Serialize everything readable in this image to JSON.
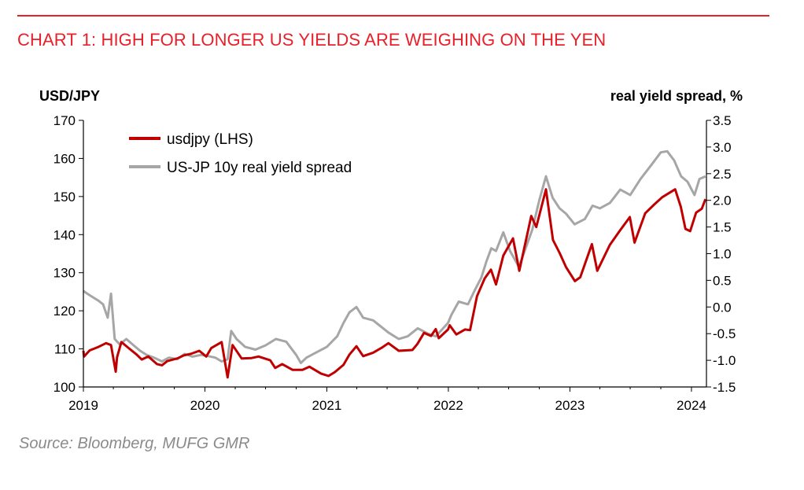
{
  "header": {
    "title": "CHART 1: HIGH FOR LONGER US YIELDS ARE WEIGHING ON THE YEN",
    "accent_color": "#e8202a"
  },
  "footer": {
    "source": "Source: Bloomberg, MUFG GMR"
  },
  "chart_data": {
    "type": "line",
    "left_axis_title": "USD/JPY",
    "right_axis_title": "real yield spread, %",
    "left_ylim": [
      100,
      170
    ],
    "right_ylim": [
      -1.5,
      3.5
    ],
    "xlim": [
      "2019-01-01",
      "2024-02-15"
    ],
    "x_tick_labels": [
      "2019",
      "2020",
      "2021",
      "2022",
      "2023",
      "2024"
    ],
    "left_tick_labels": [
      "100",
      "110",
      "120",
      "130",
      "140",
      "150",
      "160",
      "170"
    ],
    "right_tick_labels": [
      "-1.5",
      "-1.0",
      "-0.5",
      "0.0",
      "0.5",
      "1.0",
      "1.5",
      "2.0",
      "2.5",
      "3.0",
      "3.5"
    ],
    "grid": false,
    "legend_position": "top-left",
    "series": [
      {
        "name": "usdjpy (LHS)",
        "axis": "left",
        "color": "#c00000",
        "points": [
          [
            "2019-01-01",
            109.5
          ],
          [
            "2019-01-03",
            108.0
          ],
          [
            "2019-01-20",
            109.6
          ],
          [
            "2019-02-15",
            110.5
          ],
          [
            "2019-03-10",
            111.5
          ],
          [
            "2019-03-25",
            111.0
          ],
          [
            "2019-04-08",
            104.0
          ],
          [
            "2019-04-12",
            107.8
          ],
          [
            "2019-04-25",
            111.8
          ],
          [
            "2019-05-20",
            110.0
          ],
          [
            "2019-06-10",
            108.5
          ],
          [
            "2019-06-25",
            107.2
          ],
          [
            "2019-07-15",
            108.0
          ],
          [
            "2019-08-10",
            106.0
          ],
          [
            "2019-08-25",
            105.7
          ],
          [
            "2019-09-10",
            106.8
          ],
          [
            "2019-10-10",
            107.5
          ],
          [
            "2019-10-30",
            108.3
          ],
          [
            "2019-11-20",
            108.7
          ],
          [
            "2019-12-15",
            109.5
          ],
          [
            "2020-01-05",
            108.0
          ],
          [
            "2020-01-20",
            110.2
          ],
          [
            "2020-02-20",
            111.8
          ],
          [
            "2020-03-09",
            102.5
          ],
          [
            "2020-03-24",
            111.0
          ],
          [
            "2020-04-20",
            107.5
          ],
          [
            "2020-05-20",
            107.6
          ],
          [
            "2020-06-10",
            108.0
          ],
          [
            "2020-07-15",
            107.0
          ],
          [
            "2020-07-30",
            105.0
          ],
          [
            "2020-08-20",
            106.0
          ],
          [
            "2020-09-20",
            104.5
          ],
          [
            "2020-10-20",
            104.5
          ],
          [
            "2020-11-10",
            105.3
          ],
          [
            "2020-12-15",
            103.5
          ],
          [
            "2021-01-06",
            102.9
          ],
          [
            "2021-01-25",
            103.9
          ],
          [
            "2021-02-20",
            105.8
          ],
          [
            "2021-03-10",
            108.5
          ],
          [
            "2021-03-31",
            110.7
          ],
          [
            "2021-04-20",
            108.1
          ],
          [
            "2021-05-20",
            109.0
          ],
          [
            "2021-06-15",
            110.3
          ],
          [
            "2021-07-05",
            111.5
          ],
          [
            "2021-08-05",
            109.5
          ],
          [
            "2021-09-15",
            109.7
          ],
          [
            "2021-09-30",
            111.3
          ],
          [
            "2021-10-20",
            114.2
          ],
          [
            "2021-11-10",
            113.4
          ],
          [
            "2021-11-24",
            115.2
          ],
          [
            "2021-12-03",
            112.8
          ],
          [
            "2021-12-31",
            115.1
          ],
          [
            "2022-01-05",
            116.2
          ],
          [
            "2022-01-25",
            113.8
          ],
          [
            "2022-02-20",
            115.1
          ],
          [
            "2022-03-07",
            114.9
          ],
          [
            "2022-03-28",
            123.8
          ],
          [
            "2022-04-20",
            128.5
          ],
          [
            "2022-05-09",
            130.8
          ],
          [
            "2022-05-24",
            126.9
          ],
          [
            "2022-06-15",
            134.5
          ],
          [
            "2022-07-14",
            139.0
          ],
          [
            "2022-08-02",
            130.5
          ],
          [
            "2022-09-07",
            144.9
          ],
          [
            "2022-09-22",
            142.0
          ],
          [
            "2022-10-21",
            151.9
          ],
          [
            "2022-11-11",
            138.6
          ],
          [
            "2022-12-01",
            135.2
          ],
          [
            "2022-12-20",
            131.5
          ],
          [
            "2023-01-16",
            127.8
          ],
          [
            "2023-02-01",
            128.8
          ],
          [
            "2023-03-08",
            137.5
          ],
          [
            "2023-03-24",
            130.5
          ],
          [
            "2023-05-01",
            137.3
          ],
          [
            "2023-05-30",
            140.9
          ],
          [
            "2023-06-30",
            144.6
          ],
          [
            "2023-07-14",
            137.9
          ],
          [
            "2023-08-15",
            145.6
          ],
          [
            "2023-09-10",
            147.8
          ],
          [
            "2023-10-05",
            149.8
          ],
          [
            "2023-11-13",
            151.9
          ],
          [
            "2023-11-30",
            147.3
          ],
          [
            "2023-12-14",
            141.5
          ],
          [
            "2023-12-28",
            140.9
          ],
          [
            "2024-01-15",
            145.8
          ],
          [
            "2024-02-01",
            146.8
          ],
          [
            "2024-02-12",
            149.3
          ]
        ]
      },
      {
        "name": "US-JP 10y real yield spread",
        "axis": "right",
        "color": "#a6a6a6",
        "points": [
          [
            "2019-01-01",
            0.3
          ],
          [
            "2019-01-20",
            0.22
          ],
          [
            "2019-02-15",
            0.12
          ],
          [
            "2019-03-01",
            0.05
          ],
          [
            "2019-03-15",
            -0.2
          ],
          [
            "2019-03-25",
            0.25
          ],
          [
            "2019-04-05",
            -0.6
          ],
          [
            "2019-04-20",
            -0.7
          ],
          [
            "2019-05-10",
            -0.6
          ],
          [
            "2019-06-01",
            -0.72
          ],
          [
            "2019-06-20",
            -0.82
          ],
          [
            "2019-07-10",
            -0.9
          ],
          [
            "2019-08-01",
            -0.95
          ],
          [
            "2019-08-25",
            -1.02
          ],
          [
            "2019-09-15",
            -0.95
          ],
          [
            "2019-10-10",
            -0.98
          ],
          [
            "2019-11-01",
            -0.88
          ],
          [
            "2019-11-25",
            -0.93
          ],
          [
            "2019-12-20",
            -0.9
          ],
          [
            "2020-01-10",
            -0.92
          ],
          [
            "2020-02-01",
            -0.95
          ],
          [
            "2020-02-20",
            -1.02
          ],
          [
            "2020-03-09",
            -0.98
          ],
          [
            "2020-03-20",
            -0.45
          ],
          [
            "2020-04-05",
            -0.6
          ],
          [
            "2020-05-01",
            -0.75
          ],
          [
            "2020-06-01",
            -0.8
          ],
          [
            "2020-07-01",
            -0.72
          ],
          [
            "2020-08-01",
            -0.6
          ],
          [
            "2020-09-01",
            -0.65
          ],
          [
            "2020-10-01",
            -0.9
          ],
          [
            "2020-10-15",
            -1.05
          ],
          [
            "2020-11-01",
            -0.95
          ],
          [
            "2020-12-01",
            -0.85
          ],
          [
            "2021-01-01",
            -0.75
          ],
          [
            "2021-02-01",
            -0.55
          ],
          [
            "2021-02-20",
            -0.3
          ],
          [
            "2021-03-10",
            -0.1
          ],
          [
            "2021-03-31",
            0.0
          ],
          [
            "2021-04-20",
            -0.2
          ],
          [
            "2021-05-20",
            -0.25
          ],
          [
            "2021-06-15",
            -0.38
          ],
          [
            "2021-07-05",
            -0.48
          ],
          [
            "2021-08-05",
            -0.6
          ],
          [
            "2021-09-01",
            -0.55
          ],
          [
            "2021-10-01",
            -0.4
          ],
          [
            "2021-11-01",
            -0.5
          ],
          [
            "2021-11-24",
            -0.55
          ],
          [
            "2021-12-31",
            -0.3
          ],
          [
            "2022-01-10",
            -0.15
          ],
          [
            "2022-02-01",
            0.1
          ],
          [
            "2022-03-01",
            0.05
          ],
          [
            "2022-03-20",
            0.3
          ],
          [
            "2022-04-10",
            0.55
          ],
          [
            "2022-04-25",
            0.85
          ],
          [
            "2022-05-10",
            1.1
          ],
          [
            "2022-05-24",
            1.05
          ],
          [
            "2022-06-15",
            1.4
          ],
          [
            "2022-07-05",
            1.05
          ],
          [
            "2022-08-01",
            0.75
          ],
          [
            "2022-09-10",
            1.45
          ],
          [
            "2022-10-01",
            2.0
          ],
          [
            "2022-10-21",
            2.45
          ],
          [
            "2022-11-10",
            2.05
          ],
          [
            "2022-12-01",
            1.85
          ],
          [
            "2022-12-20",
            1.75
          ],
          [
            "2023-01-15",
            1.55
          ],
          [
            "2023-02-15",
            1.65
          ],
          [
            "2023-03-10",
            1.9
          ],
          [
            "2023-04-01",
            1.85
          ],
          [
            "2023-05-01",
            1.95
          ],
          [
            "2023-06-01",
            2.2
          ],
          [
            "2023-07-01",
            2.1
          ],
          [
            "2023-08-01",
            2.4
          ],
          [
            "2023-09-01",
            2.65
          ],
          [
            "2023-10-01",
            2.9
          ],
          [
            "2023-10-20",
            2.92
          ],
          [
            "2023-11-10",
            2.75
          ],
          [
            "2023-12-01",
            2.45
          ],
          [
            "2023-12-20",
            2.35
          ],
          [
            "2024-01-10",
            2.1
          ],
          [
            "2024-01-25",
            2.4
          ],
          [
            "2024-02-12",
            2.45
          ]
        ]
      }
    ]
  }
}
